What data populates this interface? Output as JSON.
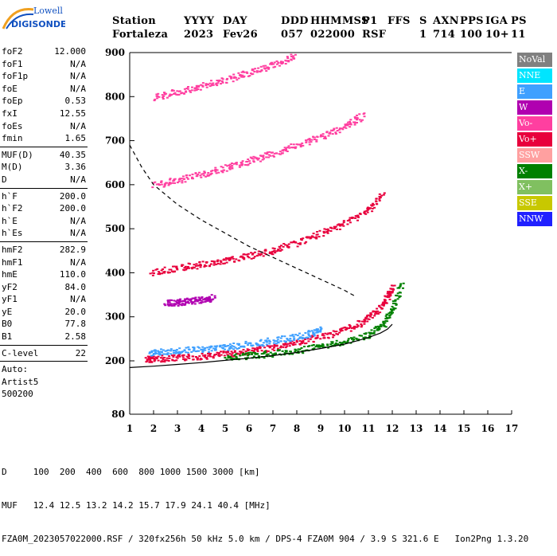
{
  "logo": {
    "line1": "Lowell",
    "line2": "DIGISONDE"
  },
  "header": {
    "labels": [
      "Station",
      "YYYY",
      "DAY",
      "DDD",
      "HHMMSS",
      "P1",
      "FFS",
      "S",
      "AXN",
      "PPS",
      "IGA",
      "PS"
    ],
    "values": [
      "Fortaleza",
      "2023",
      "Fev26",
      "057",
      "022000",
      "RSF",
      "",
      "1",
      "714",
      "100",
      "10+",
      "11"
    ]
  },
  "params": [
    {
      "label": "foF2",
      "value": "12.000"
    },
    {
      "label": "foF1",
      "value": "N/A"
    },
    {
      "label": "foF1p",
      "value": "N/A"
    },
    {
      "label": "foE",
      "value": "N/A"
    },
    {
      "label": "foEp",
      "value": "0.53"
    },
    {
      "label": "fxI",
      "value": "12.55"
    },
    {
      "label": "foEs",
      "value": "N/A"
    },
    {
      "label": "fmin",
      "value": "1.65"
    },
    {
      "sep": true
    },
    {
      "label": "MUF(D)",
      "value": "40.35"
    },
    {
      "label": "M(D)",
      "value": "3.36"
    },
    {
      "label": "D",
      "value": "N/A"
    },
    {
      "sep": true
    },
    {
      "label": "h`F",
      "value": "200.0"
    },
    {
      "label": "h`F2",
      "value": "200.0"
    },
    {
      "label": "h`E",
      "value": "N/A"
    },
    {
      "label": "h`Es",
      "value": "N/A"
    },
    {
      "sep": true
    },
    {
      "label": "hmF2",
      "value": "282.9"
    },
    {
      "label": "hmF1",
      "value": "N/A"
    },
    {
      "label": "hmE",
      "value": "110.0"
    },
    {
      "label": "yF2",
      "value": "84.0"
    },
    {
      "label": "yF1",
      "value": "N/A"
    },
    {
      "label": "yE",
      "value": "20.0"
    },
    {
      "label": "B0",
      "value": "77.8"
    },
    {
      "label": "B1",
      "value": "2.58"
    },
    {
      "sep": true
    },
    {
      "label": "C-level",
      "value": "22"
    },
    {
      "sep": true
    },
    {
      "text": "Auto:"
    },
    {
      "text": "Artist5"
    },
    {
      "text": "500200"
    }
  ],
  "legend": [
    {
      "label": "NoVal",
      "color": "#808080"
    },
    {
      "label": "NNE",
      "color": "#00e5ff"
    },
    {
      "label": "E",
      "color": "#3fa0ff"
    },
    {
      "label": "W",
      "color": "#b000b0"
    },
    {
      "label": "Vo-",
      "color": "#ff3fa0"
    },
    {
      "label": "Vo+",
      "color": "#e8003c"
    },
    {
      "label": "SSW",
      "color": "#ffa0a0"
    },
    {
      "label": "X-",
      "color": "#008000"
    },
    {
      "label": "X+",
      "color": "#80c060"
    },
    {
      "label": "SSE",
      "color": "#c8c800"
    },
    {
      "label": "NNW",
      "color": "#2020ff"
    }
  ],
  "footer": {
    "d_label": "D",
    "d_values": "100  200  400  600  800 1000 1500 3000 [km]",
    "muf_label": "MUF",
    "muf_values": "12.4 12.5 13.2 14.2 15.7 17.9 24.1 40.4 [MHz]",
    "file_line": "FZA0M_2023057022000.RSF / 320fx256h 50 kHz 5.0 km / DPS-4 FZA0M 904 / 3.9 S 321.6 E   Ion2Png 1.3.20"
  },
  "chart_data": {
    "type": "scatter",
    "x_range": [
      1,
      17
    ],
    "y_range": [
      80,
      900
    ],
    "x_ticks": [
      1,
      2,
      3,
      4,
      5,
      6,
      7,
      8,
      9,
      10,
      11,
      12,
      13,
      14,
      15,
      16,
      17
    ],
    "y_ticks": [
      80,
      200,
      300,
      400,
      500,
      600,
      700,
      800,
      900
    ],
    "grid": false,
    "series": [
      {
        "name": "O-trace (Vo+)",
        "color": "#e8003c",
        "x": [
          1.7,
          2.0,
          3.0,
          4.0,
          5.0,
          6.0,
          7.0,
          8.0,
          9.0,
          10.0,
          10.8,
          11.4,
          11.8,
          12.0
        ],
        "y": [
          205,
          206,
          208,
          212,
          217,
          223,
          232,
          243,
          256,
          272,
          292,
          318,
          348,
          370
        ]
      },
      {
        "name": "O-trace 2nd hop",
        "color": "#e8003c",
        "x": [
          1.9,
          3.0,
          4.0,
          5.0,
          6.0,
          7.0,
          8.0,
          9.0,
          10.0,
          11.0,
          11.6
        ],
        "y": [
          402,
          412,
          420,
          428,
          440,
          452,
          470,
          490,
          515,
          545,
          580
        ]
      },
      {
        "name": "O-trace 3rd hop",
        "color": "#ff3fa0",
        "x": [
          2.0,
          3.0,
          4.0,
          5.0,
          6.0,
          7.0,
          8.0,
          9.0,
          10.0,
          10.8
        ],
        "y": [
          600,
          612,
          625,
          640,
          655,
          672,
          690,
          710,
          735,
          760
        ]
      },
      {
        "name": "O-trace 4th hop",
        "color": "#ff3fa0",
        "x": [
          2.0,
          3.0,
          4.0,
          5.0,
          6.0,
          7.0,
          8.0
        ],
        "y": [
          800,
          812,
          826,
          840,
          856,
          874,
          895
        ]
      },
      {
        "name": "X-trace",
        "color": "#008000",
        "x": [
          5.0,
          6.0,
          7.0,
          8.0,
          9.0,
          10.0,
          11.0,
          11.6,
          12.0,
          12.4
        ],
        "y": [
          210,
          213,
          218,
          225,
          234,
          246,
          262,
          285,
          320,
          380
        ]
      },
      {
        "name": "Oblique (E)",
        "color": "#3fa0ff",
        "x": [
          1.8,
          2.5,
          3.5,
          4.5,
          5.5,
          6.5,
          7.5,
          8.5,
          9.0
        ],
        "y": [
          218,
          222,
          226,
          230,
          236,
          243,
          252,
          262,
          272
        ]
      },
      {
        "name": "W echoes",
        "color": "#b000b0",
        "x": [
          2.5,
          3.0,
          3.5,
          4.0,
          4.5
        ],
        "y": [
          332,
          334,
          337,
          340,
          345
        ]
      }
    ],
    "profiles": [
      {
        "name": "electron density profile",
        "color": "#000000",
        "x": [
          1.0,
          2.0,
          3.0,
          4.0,
          5.0,
          6.0,
          7.0,
          8.0,
          9.0,
          10.0,
          10.5,
          11.0,
          11.5,
          11.8,
          12.0
        ],
        "y": [
          185,
          188,
          192,
          196,
          201,
          206,
          212,
          219,
          228,
          238,
          245,
          253,
          263,
          272,
          283
        ]
      },
      {
        "name": "MUF curve (dashed)",
        "color": "#000000",
        "x": [
          1.0,
          1.5,
          2.0,
          3.0,
          4.0,
          5.0,
          6.0,
          7.0,
          8.0,
          9.0,
          10.0,
          10.5
        ],
        "y": [
          690,
          640,
          600,
          555,
          520,
          490,
          460,
          435,
          410,
          385,
          360,
          345
        ]
      }
    ]
  }
}
